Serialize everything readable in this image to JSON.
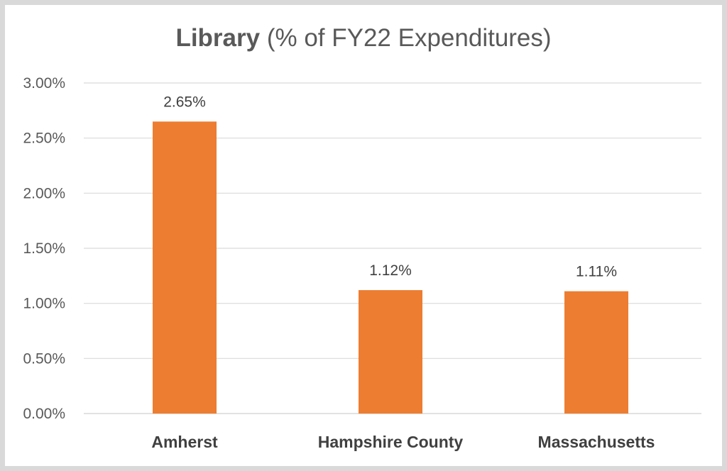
{
  "chart_data": {
    "type": "bar",
    "title_bold": "Library",
    "title_rest": " (% of FY22 Expenditures)",
    "categories": [
      "Amherst",
      "Hampshire County",
      "Massachusetts"
    ],
    "values": [
      2.65,
      1.12,
      1.11
    ],
    "data_labels": [
      "2.65%",
      "1.12%",
      "1.11%"
    ],
    "y_ticks": [
      "0.00%",
      "0.50%",
      "1.00%",
      "1.50%",
      "2.00%",
      "2.50%",
      "3.00%"
    ],
    "ylim": [
      0,
      3.0
    ],
    "grid": true,
    "legend": "none",
    "bar_color": "#ed7d31",
    "grid_color": "#d9d9d9"
  }
}
